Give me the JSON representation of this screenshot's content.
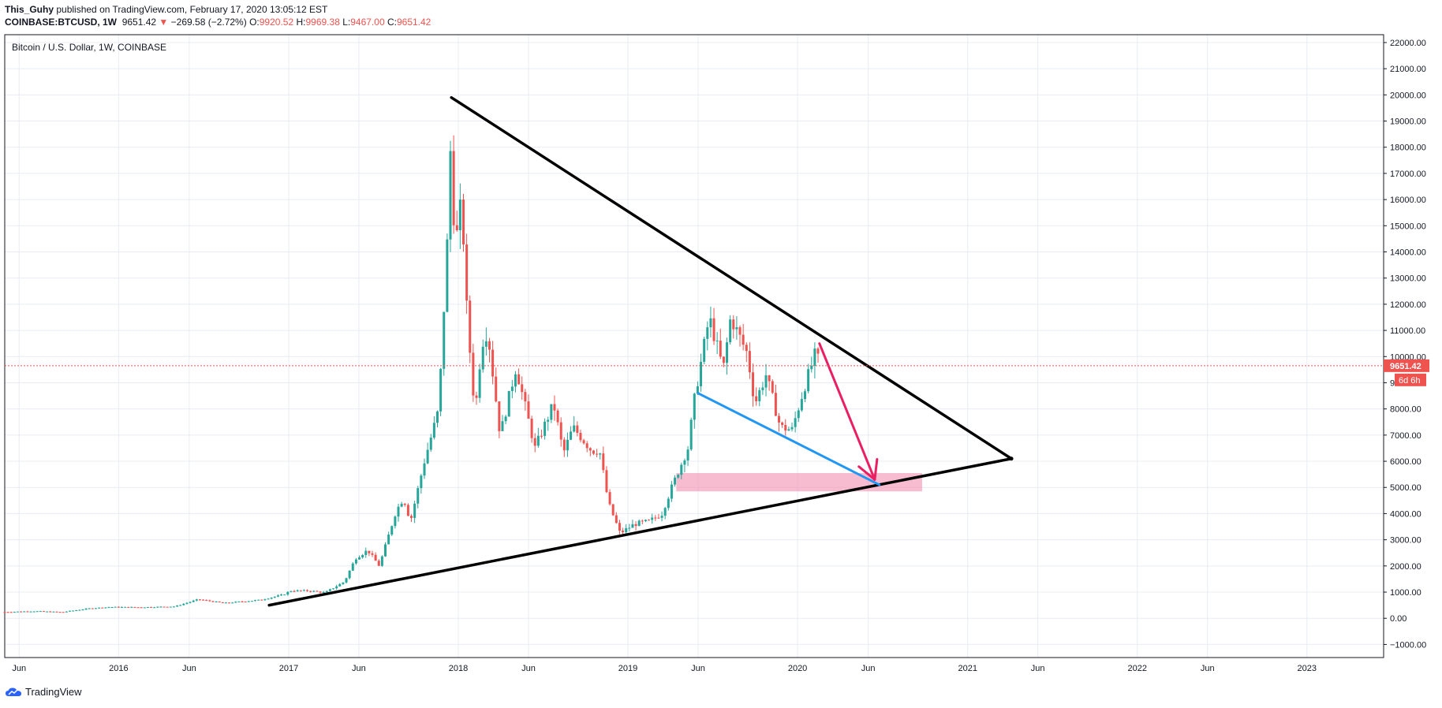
{
  "header": {
    "author": "This_Guhy",
    "published_text": "published on TradingView.com, February 17, 2020 13:05:12 EST",
    "symbol": "COINBASE:BTCUSD, 1W",
    "last": "9651.42",
    "change_arrow": "▼",
    "change": "−269.58 (−2.72%)",
    "o_label": "O:",
    "o": "9920.52",
    "h_label": "H:",
    "h": "9969.38",
    "l_label": "L:",
    "l": "9467.00",
    "c_label": "C:",
    "c": "9651.42"
  },
  "chart_title": "Bitcoin / U.S. Dollar, 1W, COINBASE",
  "price_tag": "9651.42",
  "countdown_tag": "6d 6h",
  "footer": {
    "brand": "TradingView",
    "logo_icon": "tradingview-cloud-icon"
  },
  "colors": {
    "up": "#26a69a",
    "down": "#ef5350",
    "trend": "#000000",
    "blue_line": "#2196f3",
    "arrow": "#e91e63",
    "zone": "#f48fb1",
    "grid": "#e8ecf2"
  },
  "chart_data": {
    "type": "candlestick",
    "title": "Bitcoin / U.S. Dollar, 1W, COINBASE",
    "ylim": [
      -1500,
      22300
    ],
    "y_ticks": [
      "22000.00",
      "21000.00",
      "20000.00",
      "19000.00",
      "18000.00",
      "17000.00",
      "16000.00",
      "15000.00",
      "14000.00",
      "13000.00",
      "12000.00",
      "11000.00",
      "10000.00",
      "9000.00",
      "8000.00",
      "7000.00",
      "6000.00",
      "5000.00",
      "4000.00",
      "3000.00",
      "2000.00",
      "1000.00",
      "0.00",
      "−1000.00"
    ],
    "x_range": [
      "2015-05-01",
      "2023-06-15"
    ],
    "x_ticks": [
      {
        "date": "2015-06-01",
        "label": "Jun"
      },
      {
        "date": "2016-01-01",
        "label": "2016"
      },
      {
        "date": "2016-06-01",
        "label": "Jun"
      },
      {
        "date": "2017-01-01",
        "label": "2017"
      },
      {
        "date": "2017-06-01",
        "label": "Jun"
      },
      {
        "date": "2018-01-01",
        "label": "2018"
      },
      {
        "date": "2018-06-01",
        "label": "Jun"
      },
      {
        "date": "2019-01-01",
        "label": "2019"
      },
      {
        "date": "2019-06-01",
        "label": "Jun"
      },
      {
        "date": "2020-01-01",
        "label": "2020"
      },
      {
        "date": "2020-06-01",
        "label": "Jun"
      },
      {
        "date": "2021-01-01",
        "label": "2021"
      },
      {
        "date": "2021-06-01",
        "label": "Jun"
      },
      {
        "date": "2022-01-01",
        "label": "2022"
      },
      {
        "date": "2022-06-01",
        "label": "Jun"
      },
      {
        "date": "2023-01-01",
        "label": "2023"
      }
    ],
    "current_price": 9651.42,
    "price_path": [
      [
        "2015-05-01",
        240
      ],
      [
        "2015-07-01",
        270
      ],
      [
        "2015-09-01",
        235
      ],
      [
        "2015-11-01",
        380
      ],
      [
        "2015-12-15",
        430
      ],
      [
        "2016-02-15",
        420
      ],
      [
        "2016-05-01",
        450
      ],
      [
        "2016-06-20",
        720
      ],
      [
        "2016-08-15",
        580
      ],
      [
        "2016-11-01",
        700
      ],
      [
        "2016-12-20",
        900
      ],
      [
        "2017-01-05",
        1050
      ],
      [
        "2017-02-15",
        1050
      ],
      [
        "2017-03-20",
        980
      ],
      [
        "2017-05-01",
        1400
      ],
      [
        "2017-05-25",
        2300
      ],
      [
        "2017-06-20",
        2600
      ],
      [
        "2017-07-15",
        2000
      ],
      [
        "2017-08-20",
        4100
      ],
      [
        "2017-09-05",
        4600
      ],
      [
        "2017-09-20",
        3700
      ],
      [
        "2017-10-20",
        6000
      ],
      [
        "2017-11-20",
        8000
      ],
      [
        "2017-12-10",
        15000
      ],
      [
        "2017-12-17",
        19000
      ],
      [
        "2017-12-24",
        14000
      ],
      [
        "2018-01-08",
        16000
      ],
      [
        "2018-01-20",
        11500
      ],
      [
        "2018-02-06",
        7800
      ],
      [
        "2018-02-20",
        10500
      ],
      [
        "2018-03-05",
        11000
      ],
      [
        "2018-04-01",
        7000
      ],
      [
        "2018-05-05",
        9600
      ],
      [
        "2018-06-15",
        6500
      ],
      [
        "2018-07-25",
        8200
      ],
      [
        "2018-08-15",
        6300
      ],
      [
        "2018-09-05",
        7300
      ],
      [
        "2018-10-15",
        6400
      ],
      [
        "2018-11-01",
        6400
      ],
      [
        "2018-11-20",
        4400
      ],
      [
        "2018-12-15",
        3250
      ],
      [
        "2019-01-15",
        3600
      ],
      [
        "2019-02-15",
        3700
      ],
      [
        "2019-03-15",
        4000
      ],
      [
        "2019-04-05",
        5000
      ],
      [
        "2019-05-10",
        6500
      ],
      [
        "2019-05-25",
        8500
      ],
      [
        "2019-06-25",
        11500
      ],
      [
        "2019-07-10",
        10500
      ],
      [
        "2019-07-25",
        9500
      ],
      [
        "2019-08-10",
        11500
      ],
      [
        "2019-09-15",
        10100
      ],
      [
        "2019-10-01",
        8200
      ],
      [
        "2019-10-25",
        9300
      ],
      [
        "2019-11-25",
        7300
      ],
      [
        "2019-12-20",
        7200
      ],
      [
        "2020-01-15",
        8800
      ],
      [
        "2020-02-10",
        10200
      ],
      [
        "2020-02-17",
        9651.42
      ]
    ],
    "annotations": {
      "upper_trendline": {
        "from": [
          "2017-12-17",
          19900
        ],
        "to": [
          "2021-04-05",
          6100
        ]
      },
      "lower_trendline": {
        "from": [
          "2016-11-20",
          500
        ],
        "to": [
          "2021-04-05",
          6100
        ]
      },
      "blue_line": {
        "from": [
          "2019-06-01",
          8600
        ],
        "to": [
          "2020-06-25",
          5100
        ]
      },
      "support_zone": {
        "from": "2019-04-15",
        "to": "2020-09-25",
        "low": 4850,
        "high": 5550
      },
      "arrow": {
        "from": [
          "2020-02-17",
          10500
        ],
        "to": [
          "2020-06-15",
          5300
        ]
      }
    }
  }
}
